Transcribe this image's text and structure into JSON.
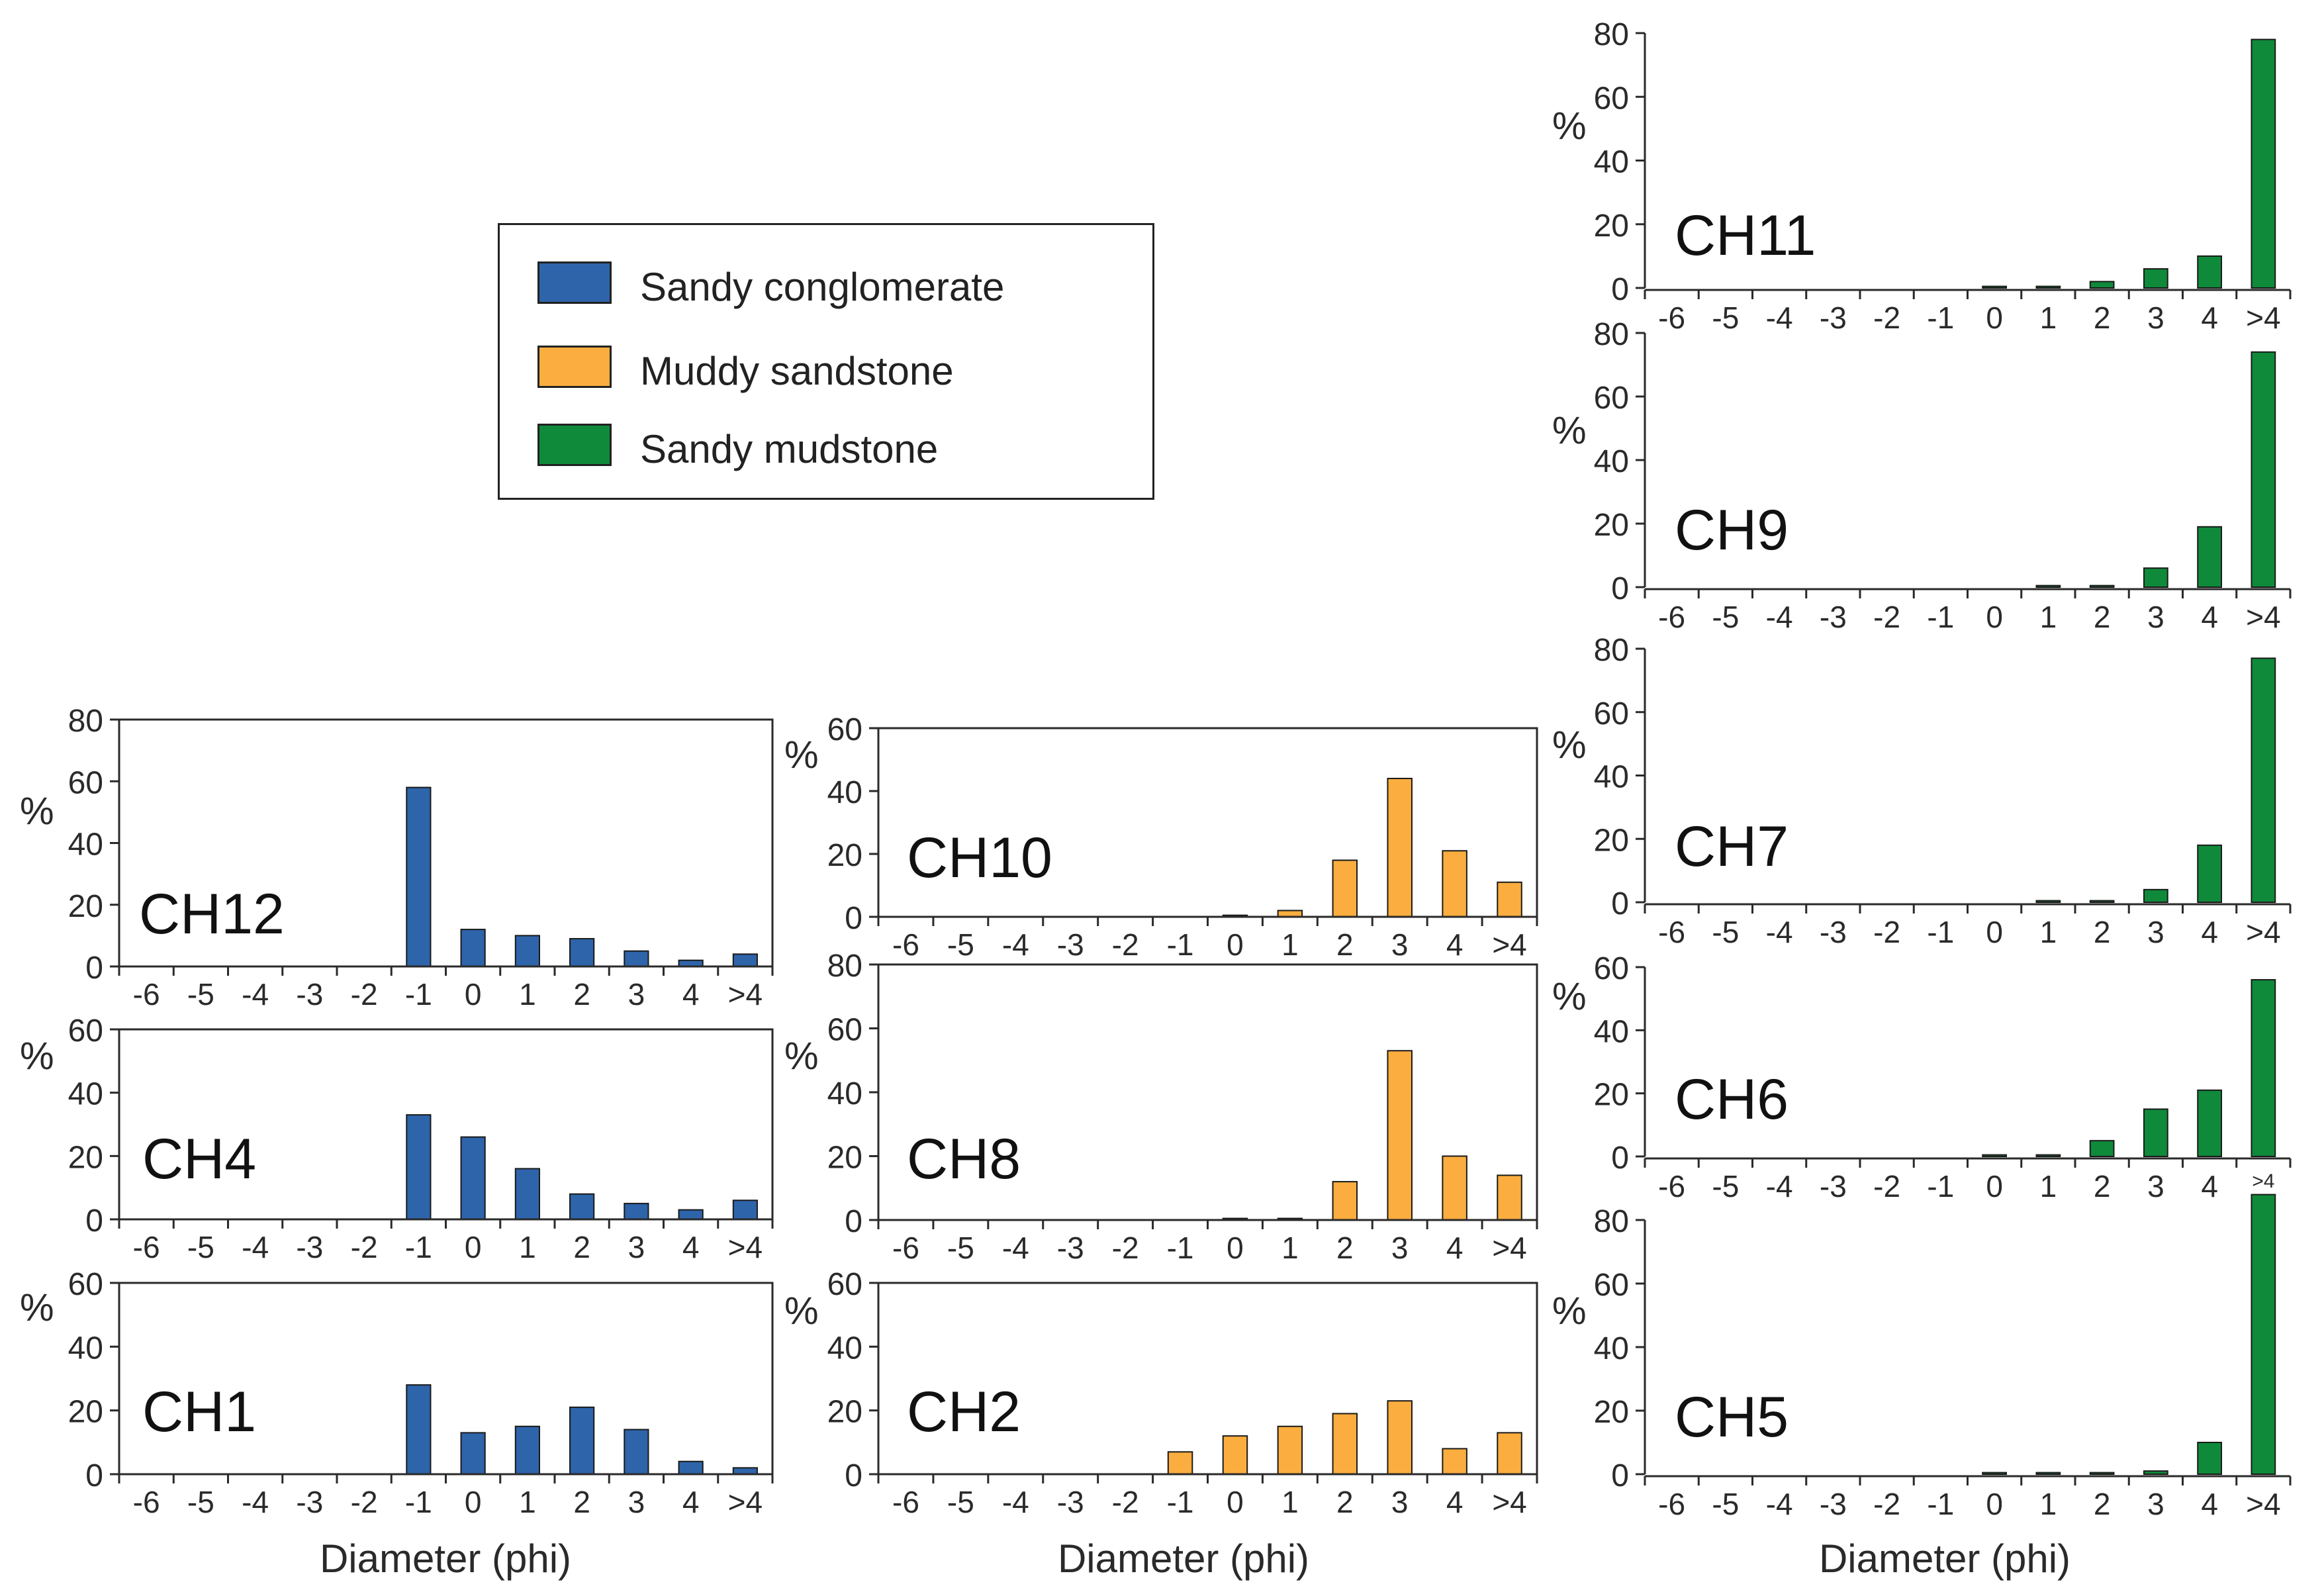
{
  "colors": {
    "sandy_conglomerate": "#2e64aa",
    "muddy_sandstone": "#fbae3f",
    "sandy_mudstone": "#0f8a3a",
    "axis": "#2a2a2a"
  },
  "legend": {
    "items": [
      {
        "label": "Sandy conglomerate",
        "color_key": "sandy_conglomerate"
      },
      {
        "label": "Muddy sandstone",
        "color_key": "muddy_sandstone"
      },
      {
        "label": "Sandy mudstone",
        "color_key": "sandy_mudstone"
      }
    ]
  },
  "xlabel": "Diameter (phi)",
  "ylabel": "%",
  "chart_data": [
    {
      "id": "CH11",
      "type": "bar",
      "lithology": "sandy_mudstone",
      "categories": [
        "-6",
        "-5",
        "-4",
        "-3",
        "-2",
        "-1",
        "0",
        "1",
        "2",
        "3",
        "4",
        ">4"
      ],
      "values": [
        0,
        0,
        0,
        0,
        0,
        0,
        0.5,
        0.5,
        2,
        6,
        10,
        78
      ],
      "yticks": [
        0,
        20,
        40,
        60,
        80
      ],
      "ylim": [
        0,
        80
      ],
      "title": "CH11",
      "ylabel": "%"
    },
    {
      "id": "CH9",
      "type": "bar",
      "lithology": "sandy_mudstone",
      "categories": [
        "-6",
        "-5",
        "-4",
        "-3",
        "-2",
        "-1",
        "0",
        "1",
        "2",
        "3",
        "4",
        ">4"
      ],
      "values": [
        0,
        0,
        0,
        0,
        0,
        0,
        0,
        0.5,
        0.5,
        6,
        19,
        74
      ],
      "yticks": [
        0,
        20,
        40,
        60,
        80
      ],
      "ylim": [
        0,
        80
      ],
      "title": "CH9",
      "ylabel": "%"
    },
    {
      "id": "CH7",
      "type": "bar",
      "lithology": "sandy_mudstone",
      "categories": [
        "-6",
        "-5",
        "-4",
        "-3",
        "-2",
        "-1",
        "0",
        "1",
        "2",
        "3",
        "4",
        ">4"
      ],
      "values": [
        0,
        0,
        0,
        0,
        0,
        0,
        0,
        0.5,
        0.5,
        4,
        18,
        77
      ],
      "yticks": [
        0,
        20,
        40,
        60,
        80
      ],
      "ylim": [
        0,
        80
      ],
      "title": "CH7",
      "ylabel": "%"
    },
    {
      "id": "CH6",
      "type": "bar",
      "lithology": "sandy_mudstone",
      "categories": [
        "-6",
        "-5",
        "-4",
        "-3",
        "-2",
        "-1",
        "0",
        "1",
        "2",
        "3",
        "4",
        ">4"
      ],
      "values": [
        0,
        0,
        0,
        0,
        0,
        0,
        0.5,
        0.5,
        5,
        15,
        21,
        56
      ],
      "yticks": [
        0,
        20,
        40,
        60
      ],
      "ylim": [
        0,
        60
      ],
      "title": "CH6",
      "ylabel": "%"
    },
    {
      "id": "CH5",
      "type": "bar",
      "lithology": "sandy_mudstone",
      "categories": [
        "-6",
        "-5",
        "-4",
        "-3",
        "-2",
        "-1",
        "0",
        "1",
        "2",
        "3",
        "4",
        ">4"
      ],
      "values": [
        0,
        0,
        0,
        0,
        0,
        0,
        0.5,
        0.5,
        0.5,
        1,
        10,
        88
      ],
      "yticks": [
        0,
        20,
        40,
        60,
        80
      ],
      "ylim": [
        0,
        80
      ],
      "title": "CH5",
      "ylabel": "%"
    },
    {
      "id": "CH12",
      "type": "bar",
      "lithology": "sandy_conglomerate",
      "categories": [
        "-6",
        "-5",
        "-4",
        "-3",
        "-2",
        "-1",
        "0",
        "1",
        "2",
        "3",
        "4",
        ">4"
      ],
      "values": [
        0,
        0,
        0,
        0,
        0,
        58,
        12,
        10,
        9,
        5,
        2,
        4
      ],
      "yticks": [
        0,
        20,
        40,
        60,
        80
      ],
      "ylim": [
        0,
        80
      ],
      "title": "CH12",
      "ylabel": "%"
    },
    {
      "id": "CH4",
      "type": "bar",
      "lithology": "sandy_conglomerate",
      "categories": [
        "-6",
        "-5",
        "-4",
        "-3",
        "-2",
        "-1",
        "0",
        "1",
        "2",
        "3",
        "4",
        ">4"
      ],
      "values": [
        0,
        0,
        0,
        0,
        0,
        33,
        26,
        16,
        8,
        5,
        3,
        6
      ],
      "yticks": [
        0,
        20,
        40,
        60
      ],
      "ylim": [
        0,
        60
      ],
      "title": "CH4",
      "ylabel": "%"
    },
    {
      "id": "CH1",
      "type": "bar",
      "lithology": "sandy_conglomerate",
      "categories": [
        "-6",
        "-5",
        "-4",
        "-3",
        "-2",
        "-1",
        "0",
        "1",
        "2",
        "3",
        "4",
        ">4"
      ],
      "values": [
        0,
        0,
        0,
        0,
        0,
        28,
        13,
        15,
        21,
        14,
        4,
        2
      ],
      "yticks": [
        0,
        20,
        40,
        60
      ],
      "ylim": [
        0,
        60
      ],
      "title": "CH1",
      "ylabel": "%"
    },
    {
      "id": "CH10",
      "type": "bar",
      "lithology": "muddy_sandstone",
      "categories": [
        "-6",
        "-5",
        "-4",
        "-3",
        "-2",
        "-1",
        "0",
        "1",
        "2",
        "3",
        "4",
        ">4"
      ],
      "values": [
        0,
        0,
        0,
        0,
        0,
        0,
        0.5,
        2,
        18,
        44,
        21,
        11
      ],
      "yticks": [
        0,
        20,
        40,
        60
      ],
      "ylim": [
        0,
        60
      ],
      "title": "CH10",
      "ylabel": "%"
    },
    {
      "id": "CH8",
      "type": "bar",
      "lithology": "muddy_sandstone",
      "categories": [
        "-6",
        "-5",
        "-4",
        "-3",
        "-2",
        "-1",
        "0",
        "1",
        "2",
        "3",
        "4",
        ">4"
      ],
      "values": [
        0,
        0,
        0,
        0,
        0,
        0,
        0.5,
        0.5,
        12,
        53,
        20,
        14
      ],
      "yticks": [
        0,
        20,
        40,
        60,
        80
      ],
      "ylim": [
        0,
        80
      ],
      "title": "CH8",
      "ylabel": "%"
    },
    {
      "id": "CH2",
      "type": "bar",
      "lithology": "muddy_sandstone",
      "categories": [
        "-6",
        "-5",
        "-4",
        "-3",
        "-2",
        "-1",
        "0",
        "1",
        "2",
        "3",
        "4",
        ">4"
      ],
      "values": [
        0,
        0,
        0,
        0,
        0,
        7,
        12,
        15,
        19,
        23,
        8,
        13
      ],
      "yticks": [
        0,
        20,
        40,
        60
      ],
      "ylim": [
        0,
        60
      ],
      "title": "CH2",
      "ylabel": "%"
    }
  ]
}
